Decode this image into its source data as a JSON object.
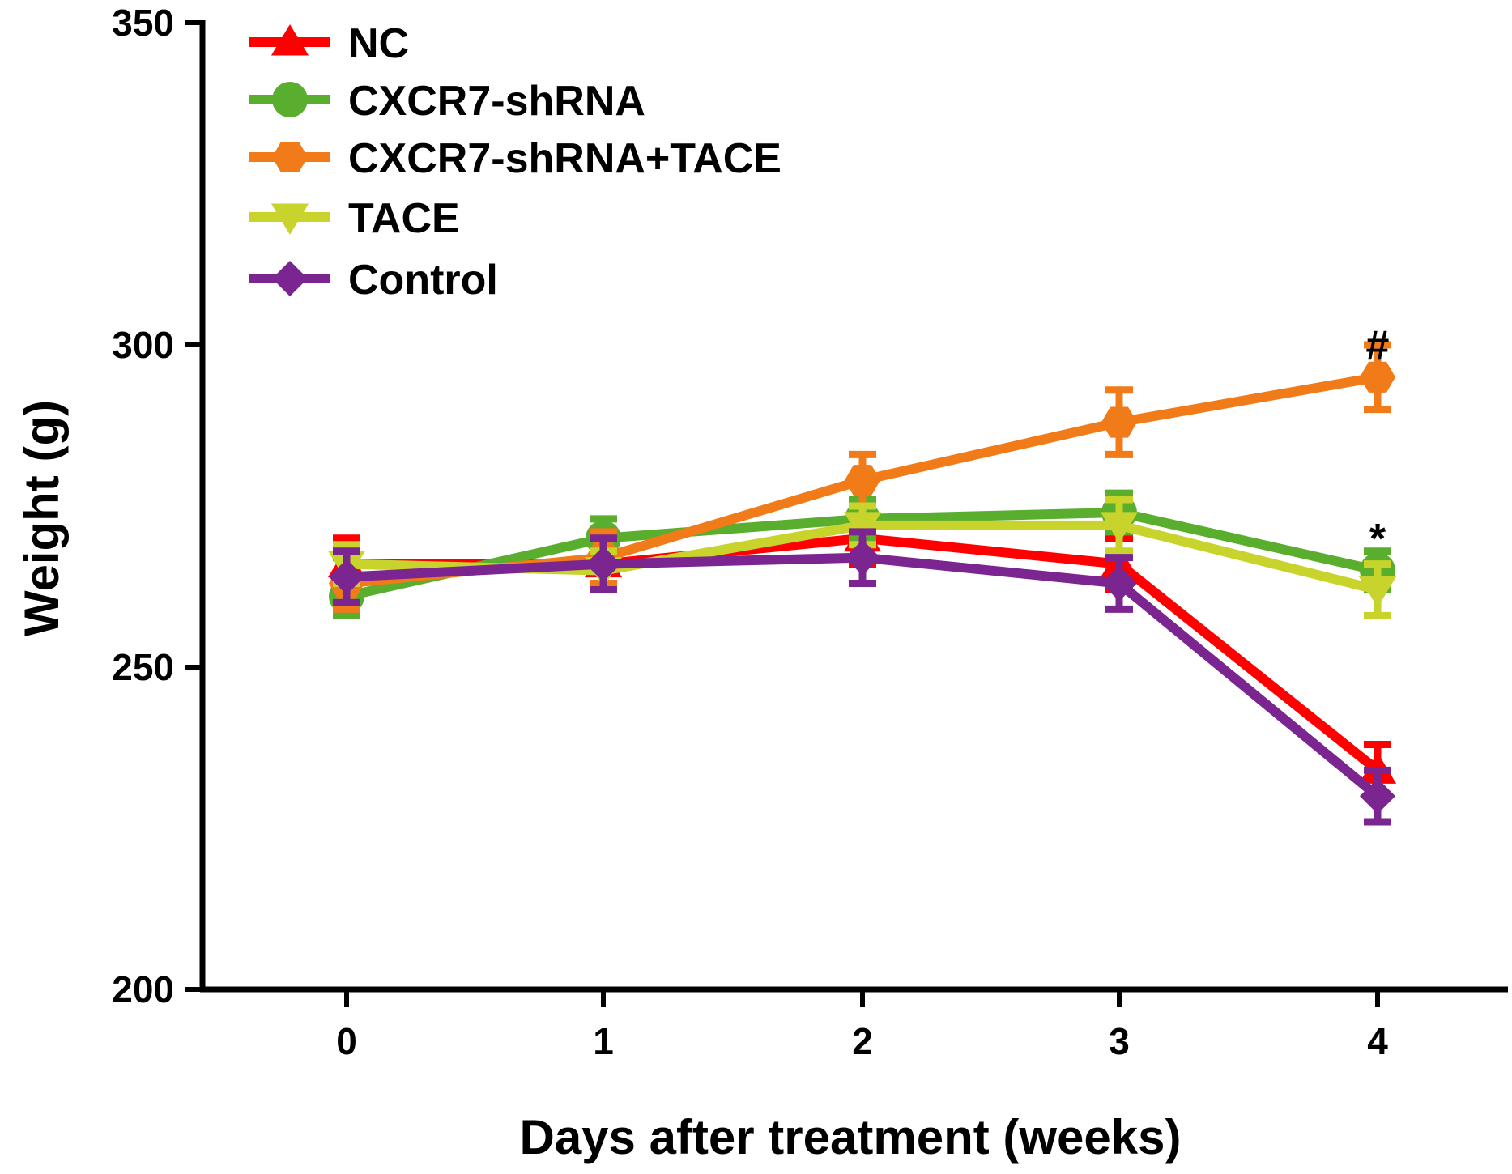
{
  "chart_data": {
    "type": "line",
    "xlabel": "Days after treatment (weeks)",
    "ylabel": "Weight (g)",
    "x": [
      0,
      1,
      2,
      3,
      4
    ],
    "xticks": [
      "0",
      "1",
      "2",
      "3",
      "4"
    ],
    "ylim": [
      200,
      350
    ],
    "yticks": [
      "200",
      "250",
      "300",
      "350"
    ],
    "legend_position": "top-left",
    "grid": false,
    "series": [
      {
        "name": "NC",
        "color": "#ff0000",
        "marker": "triangle-up",
        "values": [
          266,
          266,
          270,
          266,
          234
        ],
        "errors": [
          4,
          4,
          4,
          4,
          4
        ]
      },
      {
        "name": "CXCR7-shRNA",
        "color": "#5aae2e",
        "marker": "circle",
        "values": [
          261,
          270,
          273,
          274,
          265
        ],
        "errors": [
          3,
          3,
          3,
          3,
          3
        ]
      },
      {
        "name": "CXCR7-shRNA+TACE",
        "color": "#f07b18",
        "marker": "hexagon",
        "values": [
          263,
          267,
          279,
          288,
          295
        ],
        "errors": [
          4,
          4,
          4,
          5,
          5
        ]
      },
      {
        "name": "TACE",
        "color": "#c8d32c",
        "marker": "triangle-down",
        "values": [
          266,
          265,
          272,
          272,
          262
        ],
        "errors": [
          3,
          3,
          3,
          4,
          4
        ]
      },
      {
        "name": "Control",
        "color": "#7b2590",
        "marker": "diamond",
        "values": [
          264,
          266,
          267,
          263,
          230
        ],
        "errors": [
          4,
          4,
          4,
          4,
          4
        ]
      }
    ],
    "annotations": [
      {
        "text": "#",
        "x": 4,
        "y": 300
      },
      {
        "text": "*",
        "x": 4,
        "y": 270
      }
    ]
  }
}
